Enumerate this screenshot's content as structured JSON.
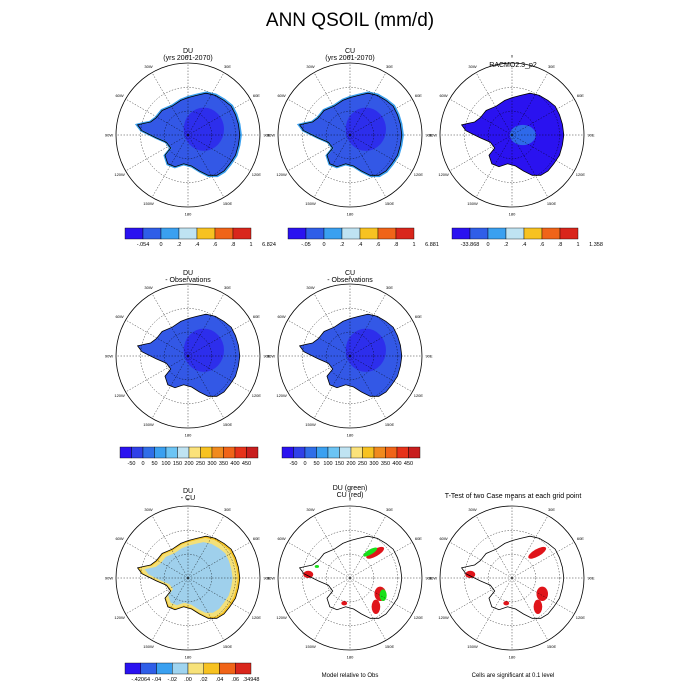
{
  "page_title": "ANN QSOIL (mm/d)",
  "panels": [
    {
      "title_line1": "DU",
      "title_line2": "(yrs 2061-2070)",
      "kind": "mean"
    },
    {
      "title_line1": "CU",
      "title_line2": "(yrs 2061-2070)",
      "kind": "mean"
    },
    {
      "title_line1": "RACMO2.3_p2",
      "title_line2": "",
      "kind": "obs"
    },
    {
      "title_line1": "DU",
      "title_line2": "- Observations",
      "kind": "bias"
    },
    {
      "title_line1": "CU",
      "title_line2": "- Observations",
      "kind": "bias"
    },
    {
      "title_line1": "DU",
      "title_line2": "- CU",
      "kind": "diff"
    },
    {
      "title_line1": "DU (green)",
      "title_line2": "CU (red)",
      "kind": "best"
    },
    {
      "title_line1": "T-Test of two Case means at each grid point",
      "title_line2": "",
      "kind": "ttest"
    }
  ],
  "map_labels": {
    "lon_0": "0",
    "lon_30w": "30W",
    "lon_30e": "30E",
    "lon_60w": "60W",
    "lon_60e": "60E",
    "lon_90w": "90W",
    "lon_90e": "90E",
    "lon_120w": "120W",
    "lon_120e": "120E",
    "lon_150w": "150W",
    "lon_150e": "150E",
    "lon_180": "180"
  },
  "colorbars": [
    {
      "id": "du",
      "labels": [
        "-.054",
        "0",
        ".2",
        ".4",
        ".6",
        ".8",
        "1",
        "6.824"
      ],
      "colors": [
        "#2a12f0",
        "#2f5ee8",
        "#3aa0f0",
        "#bfe3f2",
        "#f7c221",
        "#f06418",
        "#d9261c"
      ]
    },
    {
      "id": "cu",
      "labels": [
        "-.05",
        "0",
        ".2",
        ".4",
        ".6",
        ".8",
        "1",
        "6.881"
      ],
      "colors": [
        "#2a12f0",
        "#2f5ee8",
        "#3aa0f0",
        "#bfe3f2",
        "#f7c221",
        "#f06418",
        "#d9261c"
      ]
    },
    {
      "id": "obs",
      "labels": [
        "-33.868",
        "0",
        ".2",
        ".4",
        ".6",
        ".8",
        "1",
        "1.358"
      ],
      "colors": [
        "#2a12f0",
        "#2f5ee8",
        "#3aa0f0",
        "#bfe3f2",
        "#f7c221",
        "#f06418",
        "#d9261c"
      ]
    },
    {
      "id": "bias_du",
      "labels": [
        "-50",
        "0",
        "50",
        "100",
        "150",
        "200",
        "250",
        "300",
        "350",
        "400",
        "450"
      ],
      "colors": [
        "#2a12f0",
        "#2f40e8",
        "#2f6ee8",
        "#3aa0f0",
        "#6cc4f4",
        "#bfe3f2",
        "#fbe27a",
        "#f7c221",
        "#f08a1e",
        "#f06418",
        "#e6321a",
        "#c81e1e"
      ]
    },
    {
      "id": "bias_cu",
      "labels": [
        "-50",
        "0",
        "50",
        "100",
        "150",
        "200",
        "250",
        "300",
        "350",
        "400",
        "450"
      ],
      "colors": [
        "#2a12f0",
        "#2f40e8",
        "#2f6ee8",
        "#3aa0f0",
        "#6cc4f4",
        "#bfe3f2",
        "#fbe27a",
        "#f7c221",
        "#f08a1e",
        "#f06418",
        "#e6321a",
        "#c81e1e"
      ]
    },
    {
      "id": "diff",
      "labels": [
        "-.42064",
        "-.04",
        "-.02",
        ".00",
        ".02",
        ".04",
        ".06",
        ".34948"
      ],
      "colors": [
        "#2a12f0",
        "#2f5ee8",
        "#3aa0f0",
        "#9fd4f0",
        "#f7e27a",
        "#f7c221",
        "#f06418",
        "#d9261c"
      ]
    }
  ],
  "notes": {
    "best": "Model relative to Obs",
    "ttest": "Cells are significant at 0.1 level"
  },
  "colors": {
    "field_du": "#3358e6",
    "field_cu": "#3358e6",
    "field_obs": "#2a12f0",
    "obs_center": "#2f80e8",
    "bias": "#3358e6",
    "diff_land": "#9fd0ec",
    "diff_coast": "#f3e07a",
    "diff_edge": "#f7c221",
    "sig_red": "#e0141a",
    "sig_green": "#18e01a",
    "coast": "#000000"
  },
  "chart_data": [
    {
      "type": "heatmap",
      "title": "DU",
      "subtitle": "(yrs 2061-2070)",
      "units": "mm/d",
      "legend_levels": [
        "-.054",
        "0",
        ".2",
        ".4",
        ".6",
        ".8",
        "1",
        "6.824"
      ]
    },
    {
      "type": "heatmap",
      "title": "CU",
      "subtitle": "(yrs 2061-2070)",
      "units": "mm/d",
      "legend_levels": [
        "-.05",
        "0",
        ".2",
        ".4",
        ".6",
        ".8",
        "1",
        "6.881"
      ]
    },
    {
      "type": "heatmap",
      "title": "RACMO2.3_p2",
      "units": "mm/d",
      "legend_levels": [
        "-33.868",
        "0",
        ".2",
        ".4",
        ".6",
        ".8",
        "1",
        "1.358"
      ]
    },
    {
      "type": "heatmap",
      "title": "DU",
      "subtitle": "- Observations",
      "legend_levels": [
        "-50",
        "0",
        "50",
        "100",
        "150",
        "200",
        "250",
        "300",
        "350",
        "400",
        "450"
      ]
    },
    {
      "type": "heatmap",
      "title": "CU",
      "subtitle": "- Observations",
      "legend_levels": [
        "-50",
        "0",
        "50",
        "100",
        "150",
        "200",
        "250",
        "300",
        "350",
        "400",
        "450"
      ]
    },
    {
      "type": "heatmap",
      "title": "DU",
      "subtitle": "- CU",
      "legend_levels": [
        "-.42064",
        "-.04",
        "-.02",
        ".00",
        ".02",
        ".04",
        ".06",
        ".34948"
      ]
    },
    {
      "type": "heatmap",
      "title": "DU (green)",
      "subtitle": "CU (red)",
      "annotation": "Model relative to Obs"
    },
    {
      "type": "heatmap",
      "title": "T-Test of two Case means at each grid point",
      "annotation": "Cells are significant at 0.1 level"
    }
  ]
}
